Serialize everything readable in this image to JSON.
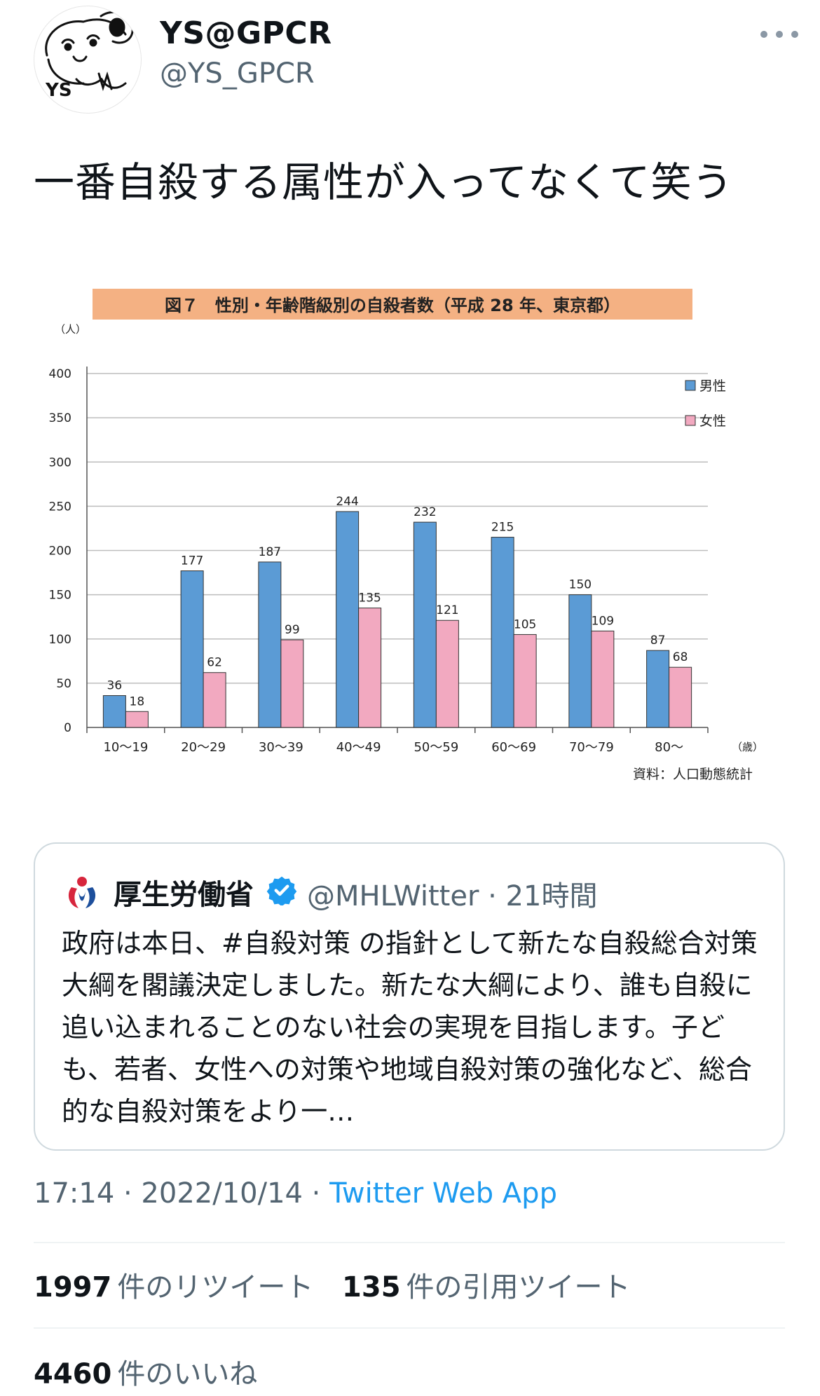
{
  "author": {
    "display_name": "YS@GPCR",
    "handle": "@YS_GPCR",
    "avatar_icon": "dog-sketch-avatar-icon"
  },
  "tweet": {
    "text": "一番自殺する属性が入ってなくて笑う"
  },
  "chart_data": {
    "type": "bar",
    "title": "図７　性別・年齢階級別の自殺者数（平成 28 年、東京都）",
    "y_unit": "（人）",
    "x_unit": "（歳）",
    "source": "資料：人口動態統計",
    "categories": [
      "10～19",
      "20～29",
      "30～39",
      "40～49",
      "50～59",
      "60～69",
      "70～79",
      "80～"
    ],
    "y_ticks": [
      "0",
      "50",
      "100",
      "150",
      "200",
      "250",
      "300",
      "350",
      "400"
    ],
    "ylim": [
      0,
      400
    ],
    "grid": true,
    "legend_position": "top-right",
    "series": [
      {
        "name": "男性",
        "color": "#5b9bd5",
        "values": [
          36,
          177,
          187,
          244,
          232,
          215,
          150,
          87
        ]
      },
      {
        "name": "女性",
        "color": "#f2a9c0",
        "values": [
          18,
          62,
          99,
          135,
          121,
          105,
          109,
          68
        ]
      }
    ],
    "title_bg": "#f4b183"
  },
  "quote": {
    "name": "厚生労働省",
    "meta": "@MHLWitter · 21時間",
    "body": "政府は本日、#自殺対策 の指針として新たな自殺総合対策大綱を閣議決定しました。新たな大綱により、誰も自殺に追い込まれることのない社会の実現を目指します。子ども、若者、女性への対策や地域自殺対策の強化など、総合的な自殺対策をより一…",
    "avatar_icon": "mhlw-logo-icon",
    "badge_icon": "verified-badge-icon"
  },
  "meta": {
    "time": "17:14 · 2022/10/14 · ",
    "app": "Twitter Web App"
  },
  "stats": {
    "retweets": "1997",
    "retweets_label": "件のリツイート",
    "quotes": "135",
    "quotes_label": "件の引用ツイート",
    "likes": "4460",
    "likes_label": "件のいいね"
  },
  "colors": {
    "link": "#1d9bf0",
    "muted": "#536471"
  }
}
